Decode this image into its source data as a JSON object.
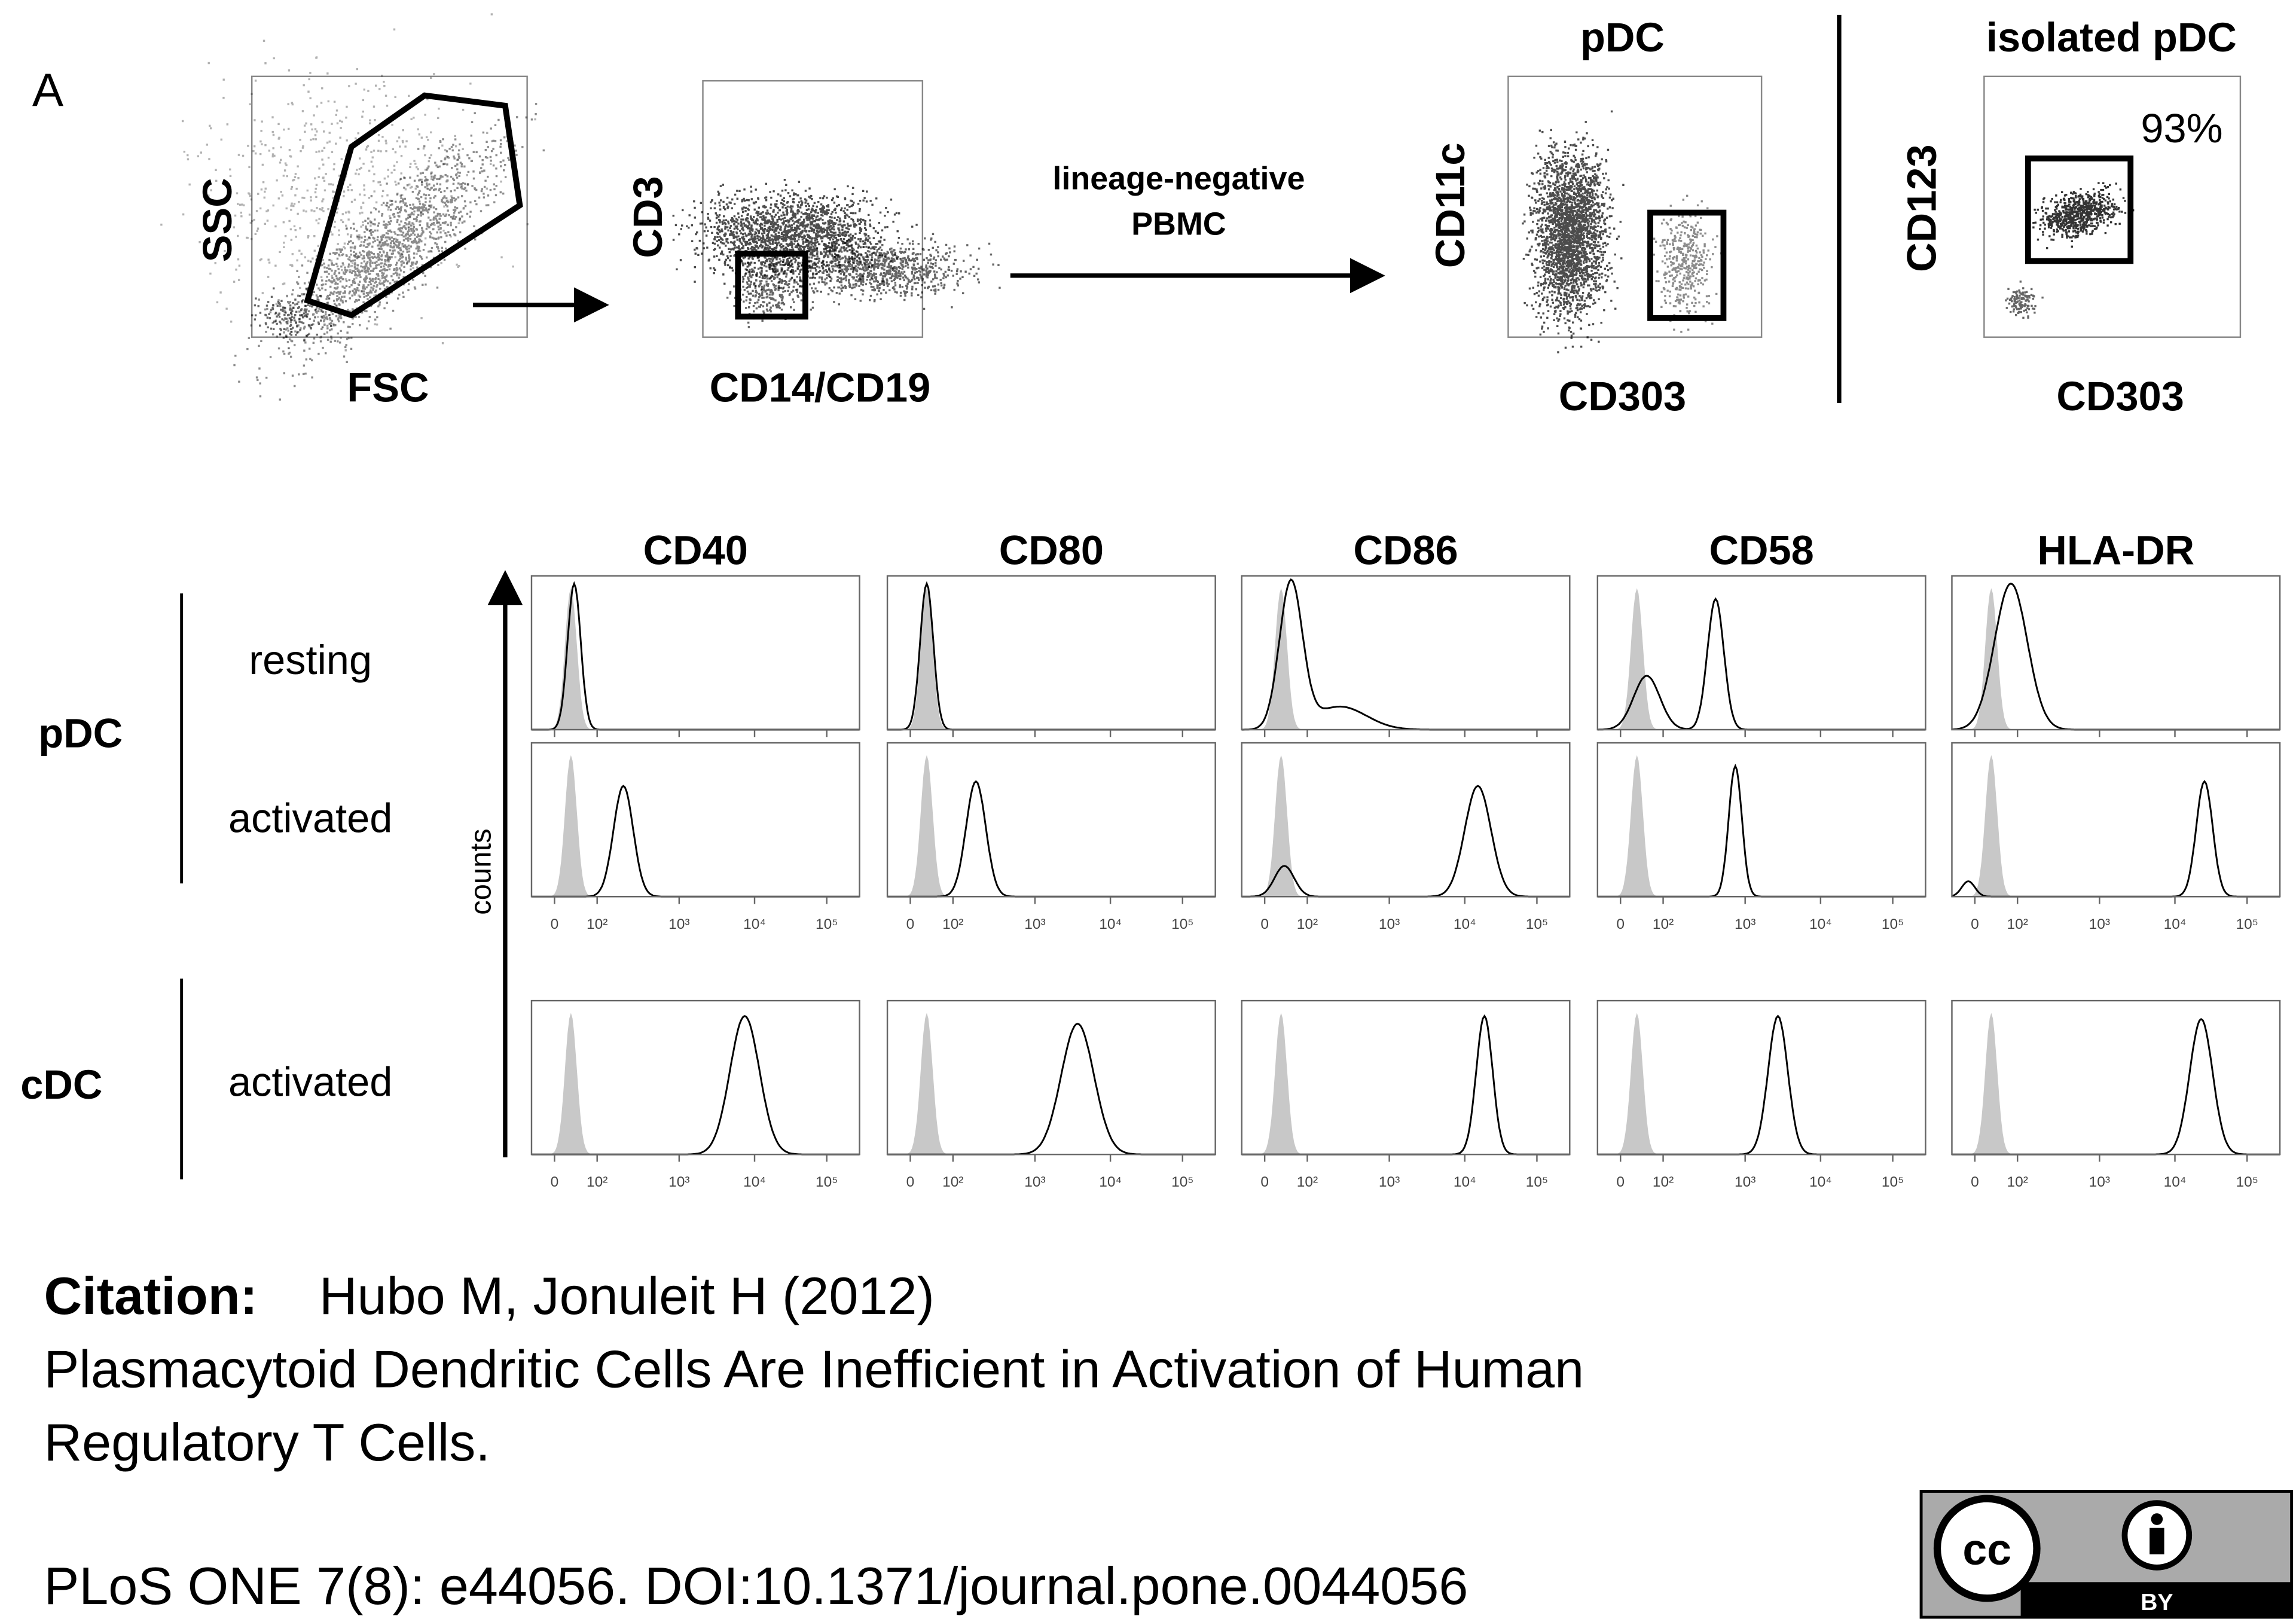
{
  "panel_label": "A",
  "gating": [
    {
      "y_label": "SSC",
      "x_label": "FSC"
    },
    {
      "y_label": "CD3",
      "x_label": "CD14/CD19"
    },
    {
      "title": "pDC",
      "y_label": "CD11c",
      "x_label": "CD303"
    },
    {
      "title": "isolated pDC",
      "y_label": "CD123",
      "x_label": "CD303",
      "gate_label": "93%"
    }
  ],
  "arrow_label": [
    "lineage-negative",
    "PBMC"
  ],
  "histograms": {
    "markers": [
      "CD40",
      "CD80",
      "CD86",
      "CD58",
      "HLA-DR"
    ],
    "cell_types": [
      "pDC",
      "cDC"
    ],
    "conditions": [
      "resting",
      "activated",
      "activated"
    ],
    "y_label": "counts",
    "x_ticks": [
      "0",
      "10²",
      "10³",
      "10⁴",
      "10⁵"
    ]
  },
  "citation": {
    "label": "Citation:",
    "authors": "Hubo M, Jonuleit H (2012)",
    "title_lines": [
      "Plasmacytoid Dendritic Cells Are Inefficient in Activation of Human",
      "Regulatory T Cells."
    ],
    "reference": "PLoS ONE 7(8): e44056. DOI:10.1371/journal.pone.0044056"
  },
  "license": {
    "cc": "cc",
    "by": "BY"
  }
}
